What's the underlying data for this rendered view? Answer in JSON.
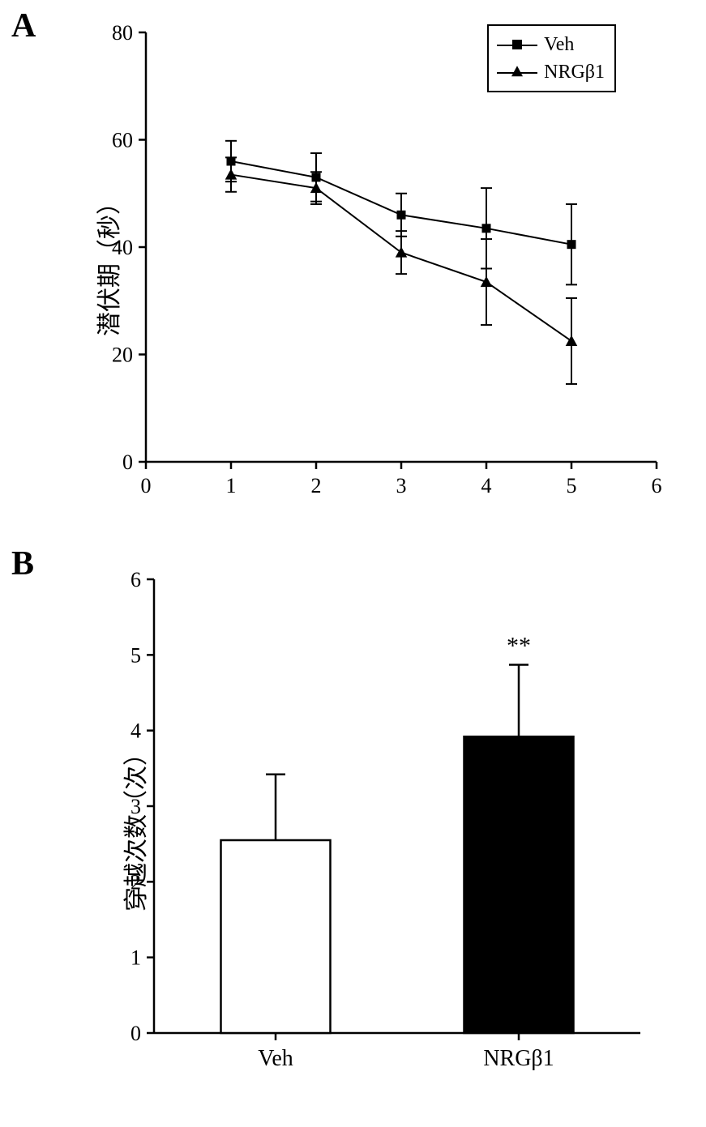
{
  "panel_a": {
    "label": "A",
    "type": "line",
    "ylabel": "潜伏期（秒）",
    "xlim": [
      0,
      6
    ],
    "ylim": [
      0,
      80
    ],
    "xtick_step": 1,
    "ytick_step": 20,
    "x_ticks": [
      0,
      1,
      2,
      3,
      4,
      5,
      6
    ],
    "y_ticks": [
      0,
      20,
      40,
      60,
      80
    ],
    "series": [
      {
        "name": "Veh",
        "marker": "square",
        "color": "#000000",
        "x": [
          1,
          2,
          3,
          4,
          5
        ],
        "y": [
          56,
          53,
          46,
          43.5,
          40.5
        ],
        "err": [
          3.8,
          4.5,
          4,
          7.5,
          7.5
        ]
      },
      {
        "name": "NRGβ1",
        "marker": "triangle",
        "color": "#000000",
        "x": [
          1,
          2,
          3,
          4,
          5
        ],
        "y": [
          53.5,
          51,
          39,
          33.5,
          22.5
        ],
        "err": [
          3.2,
          3,
          4,
          8,
          8
        ]
      }
    ],
    "legend_labels": [
      "Veh",
      "NRGβ1"
    ],
    "axis_color": "#000000",
    "line_width": 2,
    "marker_size": 11
  },
  "panel_b": {
    "label": "B",
    "type": "bar",
    "ylabel": "穿越次数（次）",
    "ylim": [
      0,
      6
    ],
    "ytick_step": 1,
    "y_ticks": [
      0,
      1,
      2,
      3,
      4,
      5,
      6
    ],
    "categories": [
      "Veh",
      "NRGβ1"
    ],
    "values": [
      2.55,
      3.92
    ],
    "errors": [
      0.87,
      0.95
    ],
    "bar_colors": [
      "#ffffff",
      "#000000"
    ],
    "bar_border": "#000000",
    "bar_width": 0.45,
    "significance": {
      "label": "**",
      "over_index": 1
    },
    "axis_color": "#000000"
  },
  "colors": {
    "background": "#ffffff",
    "axis": "#000000",
    "text": "#000000"
  },
  "typography": {
    "panel_label_fontsize": 42,
    "axis_label_fontsize": 30,
    "tick_fontsize": 26,
    "legend_fontsize": 24,
    "sig_fontsize": 30
  }
}
